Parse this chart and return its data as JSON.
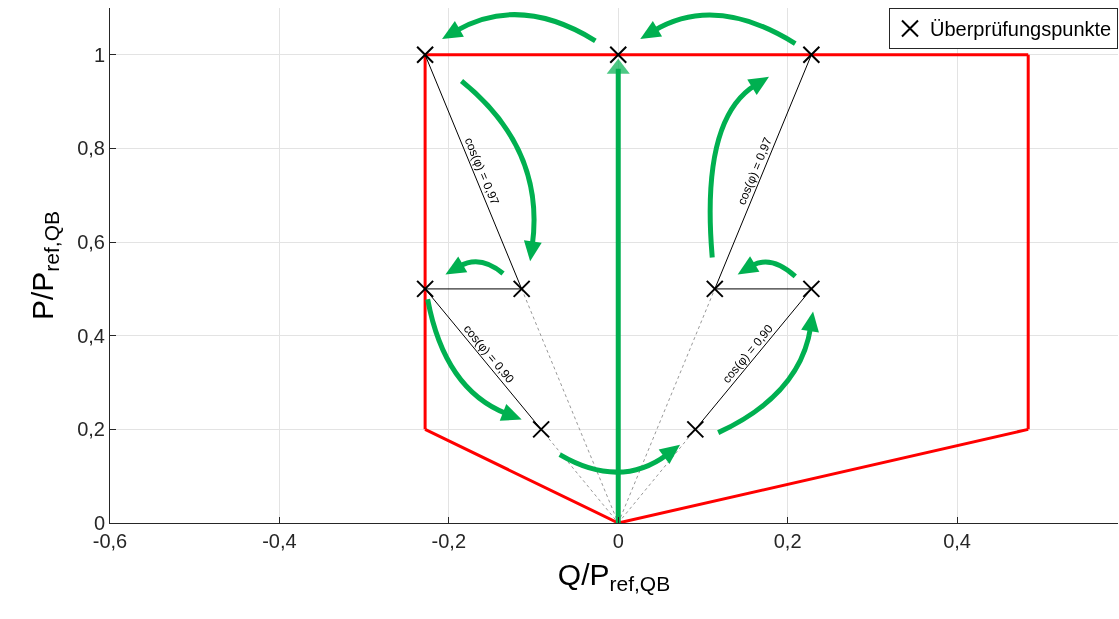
{
  "chart_data": {
    "type": "line",
    "xlabel": "Q/P$_{ref,QB}$",
    "ylabel": "P/P$_{ref,QB}$",
    "xlim": [
      -0.6,
      0.59
    ],
    "ylim": [
      0,
      1.1
    ],
    "xticks": [
      {
        "value": -0.6,
        "label": "-0,6"
      },
      {
        "value": -0.4,
        "label": "-0,4"
      },
      {
        "value": -0.2,
        "label": "-0,2"
      },
      0,
      {
        "value": 0.2,
        "label": "0,2"
      },
      {
        "value": 0.4,
        "label": "0,4"
      }
    ],
    "yticks": [
      0,
      {
        "value": 0.2,
        "label": "0,2"
      },
      {
        "value": 0.4,
        "label": "0,4"
      },
      {
        "value": 0.6,
        "label": "0,6"
      },
      {
        "value": 0.8,
        "label": "0,8"
      },
      1
    ],
    "grid": true,
    "legend": "top right",
    "series": [
      {
        "color": "#ff0000",
        "line_style": "solid",
        "marker": "none",
        "x": [
          -0.228,
          0.484
        ],
        "values": [
          1,
          1
        ]
      },
      {
        "color": "#ff0000",
        "line_style": "solid",
        "marker": "none",
        "x": [
          0.484,
          0.484
        ],
        "values": [
          1,
          0.2
        ]
      },
      {
        "color": "#ff0000",
        "line_style": "solid",
        "marker": "none",
        "x": [
          -0.228,
          0,
          0.484
        ],
        "values": [
          0.2,
          0,
          0.2
        ]
      },
      {
        "color": "#ff0000",
        "line_style": "solid",
        "marker": "none",
        "x": [
          -0.228,
          -0.228
        ],
        "values": [
          0.2,
          1
        ]
      },
      {
        "color": "#000000",
        "line_style": "solid",
        "marker": "none",
        "x": [
          -0.228,
          -0.114
        ],
        "values": [
          1,
          0.5
        ]
      },
      {
        "color": "#000000",
        "line_style": "solid",
        "marker": "none",
        "x": [
          -0.228,
          -0.114
        ],
        "values": [
          0.5,
          0.5
        ]
      },
      {
        "color": "#000000",
        "line_style": "solid",
        "marker": "none",
        "x": [
          -0.228,
          -0.091
        ],
        "values": [
          0.5,
          0.2
        ]
      },
      {
        "color": "#000000",
        "line_style": "solid",
        "marker": "none",
        "x": [
          0.114,
          0.228
        ],
        "values": [
          0.5,
          1
        ]
      },
      {
        "color": "#000000",
        "line_style": "solid",
        "marker": "none",
        "x": [
          0.114,
          0.228
        ],
        "values": [
          0.5,
          0.5
        ]
      },
      {
        "color": "#000000",
        "line_style": "solid",
        "marker": "none",
        "x": [
          0.091,
          0.228
        ],
        "values": [
          0.2,
          0.5
        ]
      },
      {
        "color": "#999999",
        "line_style": "dotted",
        "marker": "none",
        "x": [
          -0.114,
          0
        ],
        "values": [
          0.5,
          0
        ]
      },
      {
        "color": "#999999",
        "line_style": "dotted",
        "marker": "none",
        "x": [
          -0.091,
          0
        ],
        "values": [
          0.2,
          0
        ]
      },
      {
        "color": "#999999",
        "line_style": "dotted",
        "marker": "none",
        "x": [
          0,
          0.114
        ],
        "values": [
          0,
          0.5
        ]
      },
      {
        "color": "#999999",
        "line_style": "dotted",
        "marker": "none",
        "x": [
          0,
          0.091
        ],
        "values": [
          0,
          0.2
        ]
      },
      {
        "color": "#00b050",
        "line_style": "solid",
        "marker": "triangle",
        "x": [
          0,
          0
        ],
        "values": [
          0,
          0.97
        ]
      },
      {
        "type": "scatter",
        "name": "Überprüfungspunkte",
        "color": "#000000",
        "marker": "cross",
        "x": [
          -0.228,
          0,
          0.228,
          -0.228,
          -0.114,
          0.114,
          0.228,
          -0.091,
          0.091
        ],
        "values": [
          1,
          1,
          1,
          0.5,
          0.5,
          0.5,
          0.5,
          0.2,
          0.2
        ]
      }
    ],
    "annotations": [
      {
        "text": "cos(φ) = 0,97",
        "x": -0.17,
        "y": 0.745
      },
      {
        "text": "cos(φ) = 0,97",
        "x": 0.17,
        "y": 0.745
      },
      {
        "text": "cos(φ) = 0,90",
        "x": -0.16,
        "y": 0.35
      },
      {
        "text": "cos(φ) = 0,90",
        "x": 0.16,
        "y": 0.35
      }
    ]
  }
}
